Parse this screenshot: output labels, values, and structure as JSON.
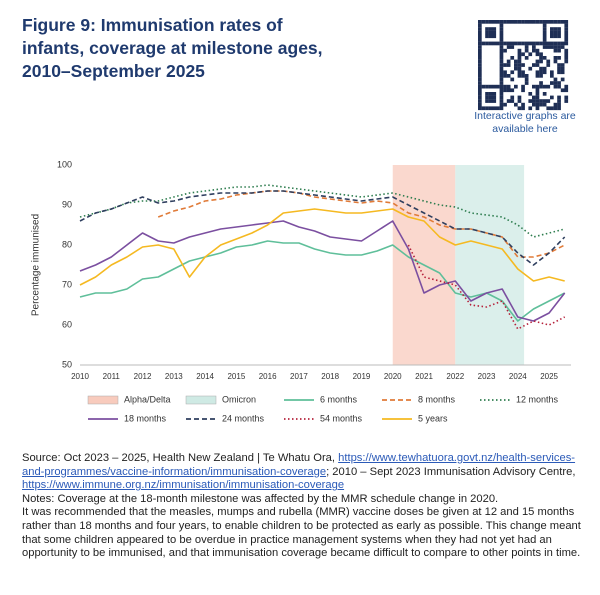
{
  "chart_data": {
    "type": "line",
    "title": "Figure 9: Immunisation rates of infants, coverage at milestone ages, 2010–September 2025",
    "qr_caption": "Interactive graphs are available here",
    "ylabel": "Percentage immunised",
    "xlim": [
      2010,
      2025.7
    ],
    "xticks": [
      2010,
      2011,
      2012,
      2013,
      2014,
      2015,
      2016,
      2017,
      2018,
      2019,
      2020,
      2021,
      2022,
      2023,
      2024,
      2025
    ],
    "ylim": [
      50,
      100
    ],
    "yticks": [
      50,
      60,
      70,
      80,
      90,
      100
    ],
    "shaded": [
      {
        "name": "Alpha/Delta",
        "color": "#f8cbbd",
        "start": 2020,
        "end": 2022
      },
      {
        "name": "Omicron",
        "color": "#cfeae4",
        "start": 2022,
        "end": 2024.2
      }
    ],
    "x": [
      2010,
      2010.5,
      2011,
      2011.5,
      2012,
      2012.5,
      2013,
      2013.5,
      2014,
      2014.5,
      2015,
      2015.5,
      2016,
      2016.5,
      2017,
      2017.5,
      2018,
      2018.5,
      2019,
      2019.5,
      2020,
      2020.5,
      2021,
      2021.5,
      2022,
      2022.5,
      2023,
      2023.5,
      2024,
      2024.5,
      2025,
      2025.5
    ],
    "series": [
      {
        "name": "6 months",
        "color": "#5fbf9a",
        "style": "solid",
        "values": [
          67,
          68,
          68,
          69,
          71.5,
          72,
          74,
          76,
          77,
          78,
          79.5,
          80,
          81,
          80.5,
          80.5,
          79,
          78,
          77.5,
          77.5,
          78.5,
          80,
          77,
          75,
          73,
          68,
          67,
          68,
          66,
          61,
          64,
          66,
          68
        ]
      },
      {
        "name": "8 months",
        "color": "#e07b39",
        "style": "dashed",
        "values": [
          null,
          null,
          null,
          null,
          null,
          87,
          88.5,
          89.5,
          91,
          91.5,
          92.5,
          93,
          93.5,
          93.5,
          93,
          92,
          91.5,
          91,
          90.5,
          91,
          90.5,
          88,
          87,
          85,
          84,
          84,
          83,
          82,
          77,
          77,
          78,
          80
        ]
      },
      {
        "name": "12 months",
        "color": "#2e7d4f",
        "style": "dotted",
        "values": [
          87,
          88,
          89,
          90.5,
          91,
          91,
          92,
          93,
          93.5,
          94,
          94.5,
          94.5,
          95,
          94.5,
          94,
          93.5,
          93,
          92.5,
          92,
          92.5,
          93,
          92,
          91,
          90,
          89.5,
          88,
          87.5,
          87,
          85,
          82,
          83,
          84
        ]
      },
      {
        "name": "18 months",
        "color": "#7b4fa0",
        "style": "solid",
        "values": [
          73.5,
          75,
          77,
          80,
          83,
          81,
          80.5,
          82,
          83,
          84,
          84.5,
          85,
          85.5,
          86,
          84.5,
          83.5,
          82,
          81.5,
          81,
          83.5,
          86,
          79,
          68,
          70,
          71,
          66,
          68,
          69,
          62,
          61,
          63,
          68
        ]
      },
      {
        "name": "24 months",
        "color": "#2f3f5f",
        "style": "dashed",
        "values": [
          86,
          88,
          89,
          90.5,
          92,
          90.5,
          91,
          92,
          92.5,
          93,
          93,
          93,
          93.5,
          93.5,
          93,
          92.5,
          92,
          91.5,
          91,
          91.5,
          92,
          90,
          88,
          86,
          84,
          84,
          83,
          82,
          78,
          75,
          78,
          82
        ]
      },
      {
        "name": "54 months",
        "color": "#b5223b",
        "style": "dotted",
        "values": [
          null,
          null,
          null,
          null,
          null,
          null,
          null,
          null,
          null,
          null,
          null,
          null,
          null,
          null,
          null,
          null,
          null,
          null,
          null,
          null,
          null,
          80,
          72,
          71,
          70,
          65,
          64.5,
          66,
          59,
          61,
          60,
          62
        ]
      },
      {
        "name": "5 years",
        "color": "#f5b921",
        "style": "solid",
        "values": [
          70,
          72,
          75,
          77,
          79.5,
          80,
          79,
          72,
          77,
          80,
          81.5,
          83,
          85,
          88,
          88.5,
          89,
          88.5,
          88,
          88,
          88.5,
          89,
          87,
          86,
          82,
          80,
          81,
          80,
          79,
          74,
          71,
          72,
          71
        ]
      }
    ]
  },
  "footer": {
    "source_1": "Source: Oct 2023 – 2025, Health New Zealand | Te Whatu Ora, ",
    "link_1": "https://www.tewhatuora.govt.nz/health-services-and-programmes/vaccine-information/immunisation-coverage",
    "source_2": "; 2010 – Sept 2023 Immunisation Advisory Centre, ",
    "link_2": "https://www.immune.org.nz/immunisation/immunisation-coverage",
    "note_1": "Notes: Coverage at the 18-month milestone was affected by the MMR schedule change in 2020.",
    "note_2": "It was recommended that the measles, mumps and rubella (MMR) vaccine doses be given at 12 and 15 months rather than 18 months and four years, to enable children to be protected as early as possible. This change meant that some children appeared to be overdue in practice management systems when they had not yet had an opportunity to be immunised, and that immunisation coverage became difficult to compare to other points in time."
  }
}
